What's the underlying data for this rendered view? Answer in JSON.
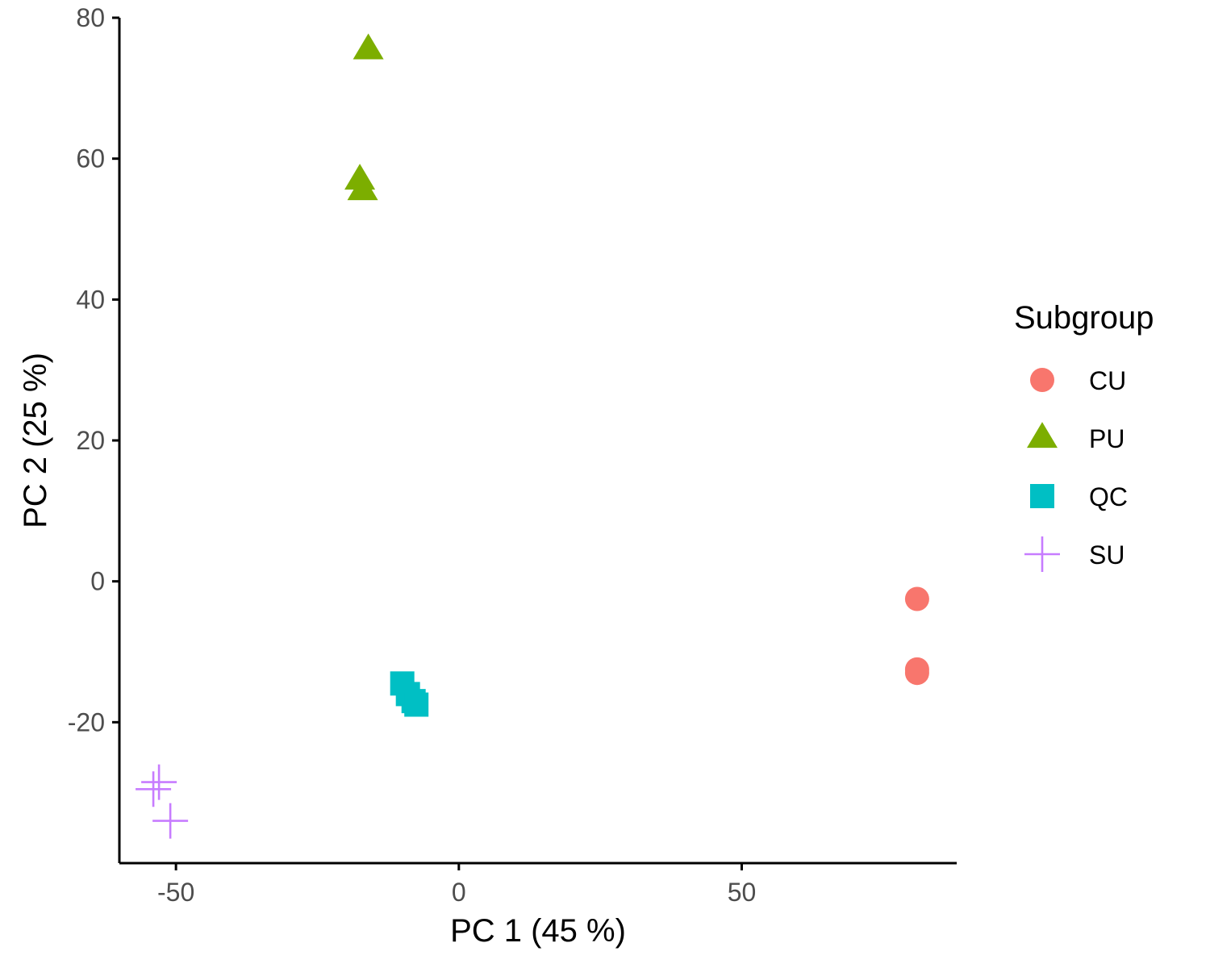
{
  "chart_data": {
    "type": "scatter",
    "xlabel": "PC 1 (45 %)",
    "ylabel": "PC 2 (25 %)",
    "xlim": [
      -60,
      88
    ],
    "ylim": [
      -40,
      80
    ],
    "x_ticks": [
      -50,
      0,
      50
    ],
    "y_ticks": [
      -20,
      0,
      20,
      40,
      60,
      80
    ],
    "grid": false,
    "legend": {
      "title": "Subgroup",
      "placement": "right"
    },
    "series": [
      {
        "name": "CU",
        "shape": "circle",
        "color": "#F8766D",
        "points": [
          {
            "x": 81,
            "y": -2.5
          },
          {
            "x": 81,
            "y": -12.5
          },
          {
            "x": 81,
            "y": -13
          }
        ]
      },
      {
        "name": "PU",
        "shape": "triangle",
        "color": "#7CAE00",
        "points": [
          {
            "x": -16,
            "y": 75.5
          },
          {
            "x": -17.5,
            "y": 57
          },
          {
            "x": -17,
            "y": 55.5
          }
        ]
      },
      {
        "name": "QC",
        "shape": "square",
        "color": "#00BFC4",
        "points": [
          {
            "x": -10,
            "y": -14.5
          },
          {
            "x": -9,
            "y": -16
          },
          {
            "x": -8,
            "y": -17
          },
          {
            "x": -7.5,
            "y": -17.5
          }
        ]
      },
      {
        "name": "SU",
        "shape": "plus",
        "color": "#C77CFF",
        "points": [
          {
            "x": -53,
            "y": -28.5
          },
          {
            "x": -54,
            "y": -29.5
          },
          {
            "x": -51,
            "y": -34
          }
        ]
      }
    ]
  }
}
